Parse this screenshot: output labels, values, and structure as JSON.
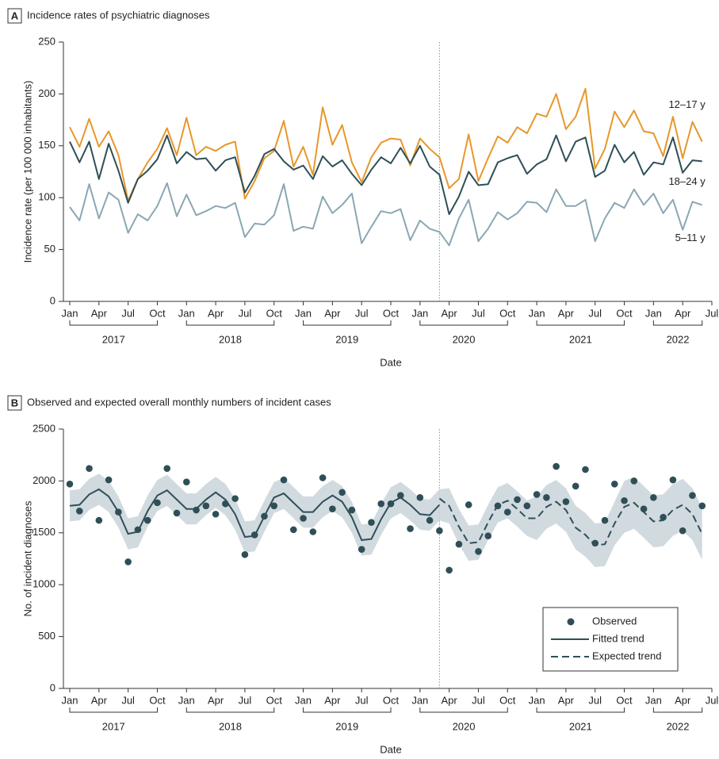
{
  "chart_data": [
    {
      "type": "line",
      "panel": "A",
      "title": "Incidence rates of psychiatric diagnoses",
      "xlabel": "Date",
      "ylabel": "Incidence rate (per 100 000 inhabitants)",
      "x": [
        "2017-01",
        "2017-02",
        "2017-03",
        "2017-04",
        "2017-05",
        "2017-06",
        "2017-07",
        "2017-08",
        "2017-09",
        "2017-10",
        "2017-11",
        "2017-12",
        "2018-01",
        "2018-02",
        "2018-03",
        "2018-04",
        "2018-05",
        "2018-06",
        "2018-07",
        "2018-08",
        "2018-09",
        "2018-10",
        "2018-11",
        "2018-12",
        "2019-01",
        "2019-02",
        "2019-03",
        "2019-04",
        "2019-05",
        "2019-06",
        "2019-07",
        "2019-08",
        "2019-09",
        "2019-10",
        "2019-11",
        "2019-12",
        "2020-01",
        "2020-02",
        "2020-03",
        "2020-04",
        "2020-05",
        "2020-06",
        "2020-07",
        "2020-08",
        "2020-09",
        "2020-10",
        "2020-11",
        "2020-12",
        "2021-01",
        "2021-02",
        "2021-03",
        "2021-04",
        "2021-05",
        "2021-06",
        "2021-07",
        "2021-08",
        "2021-09",
        "2021-10",
        "2021-11",
        "2021-12",
        "2022-01",
        "2022-02",
        "2022-03",
        "2022-04",
        "2022-05",
        "2022-06"
      ],
      "xticks": [
        {
          "value": "2017-01",
          "label": "Jan"
        },
        {
          "value": "2017-04",
          "label": "Apr"
        },
        {
          "value": "2017-07",
          "label": "Jul"
        },
        {
          "value": "2017-10",
          "label": "Oct"
        },
        {
          "value": "2018-01",
          "label": "Jan"
        },
        {
          "value": "2018-04",
          "label": "Apr"
        },
        {
          "value": "2018-07",
          "label": "Jul"
        },
        {
          "value": "2018-10",
          "label": "Oct"
        },
        {
          "value": "2019-01",
          "label": "Jan"
        },
        {
          "value": "2019-04",
          "label": "Apr"
        },
        {
          "value": "2019-07",
          "label": "Jul"
        },
        {
          "value": "2019-10",
          "label": "Oct"
        },
        {
          "value": "2020-01",
          "label": "Jan"
        },
        {
          "value": "2020-04",
          "label": "Apr"
        },
        {
          "value": "2020-07",
          "label": "Jul"
        },
        {
          "value": "2020-10",
          "label": "Oct"
        },
        {
          "value": "2021-01",
          "label": "Jan"
        },
        {
          "value": "2021-04",
          "label": "Apr"
        },
        {
          "value": "2021-07",
          "label": "Jul"
        },
        {
          "value": "2021-10",
          "label": "Oct"
        },
        {
          "value": "2022-01",
          "label": "Jan"
        },
        {
          "value": "2022-04",
          "label": "Apr"
        },
        {
          "value": "2022-07",
          "label": "Jul"
        }
      ],
      "years": [
        "2017",
        "2018",
        "2019",
        "2020",
        "2021",
        "2022"
      ],
      "marker_x": "2020-03",
      "ylim": [
        0,
        250
      ],
      "yticks": [
        0,
        50,
        100,
        150,
        200,
        250
      ],
      "series": [
        {
          "name": "12–17 y",
          "color": "#e8972a",
          "values": [
            168,
            149,
            176,
            149,
            164,
            141,
            97,
            118,
            134,
            147,
            167,
            141,
            177,
            141,
            149,
            145,
            151,
            154,
            99,
            116,
            138,
            145,
            174,
            130,
            149,
            122,
            187,
            151,
            170,
            134,
            115,
            139,
            153,
            157,
            156,
            131,
            157,
            147,
            139,
            109,
            118,
            161,
            116,
            138,
            159,
            153,
            168,
            162,
            181,
            178,
            200,
            166,
            178,
            205,
            128,
            147,
            183,
            168,
            184,
            164,
            162,
            140,
            178,
            138,
            173,
            154
          ]
        },
        {
          "name": "18–24 y",
          "color": "#2f4f57",
          "values": [
            154,
            134,
            154,
            118,
            152,
            126,
            95,
            118,
            126,
            137,
            160,
            133,
            144,
            137,
            138,
            126,
            136,
            139,
            105,
            121,
            142,
            147,
            135,
            127,
            131,
            118,
            140,
            130,
            136,
            123,
            112,
            127,
            139,
            133,
            148,
            133,
            150,
            130,
            122,
            84,
            101,
            125,
            112,
            113,
            134,
            138,
            141,
            123,
            132,
            137,
            160,
            135,
            154,
            158,
            120,
            126,
            151,
            134,
            144,
            122,
            134,
            132,
            158,
            124,
            136,
            135
          ]
        },
        {
          "name": "5–11 y",
          "color": "#8aa7b3",
          "values": [
            91,
            78,
            113,
            80,
            105,
            98,
            66,
            84,
            78,
            92,
            114,
            82,
            103,
            83,
            87,
            92,
            90,
            95,
            62,
            75,
            74,
            83,
            113,
            68,
            72,
            70,
            101,
            85,
            93,
            104,
            56,
            72,
            87,
            85,
            89,
            59,
            78,
            70,
            67,
            54,
            80,
            98,
            58,
            70,
            86,
            79,
            85,
            96,
            95,
            86,
            108,
            92,
            92,
            98,
            58,
            80,
            95,
            90,
            108,
            93,
            104,
            85,
            98,
            69,
            96,
            93
          ]
        }
      ]
    },
    {
      "type": "trend",
      "panel": "B",
      "title": "Observed and expected overall monthly numbers of incident cases",
      "xlabel": "Date",
      "ylabel": "No. of incident diagnoses",
      "x": [
        "2017-01",
        "2017-02",
        "2017-03",
        "2017-04",
        "2017-05",
        "2017-06",
        "2017-07",
        "2017-08",
        "2017-09",
        "2017-10",
        "2017-11",
        "2017-12",
        "2018-01",
        "2018-02",
        "2018-03",
        "2018-04",
        "2018-05",
        "2018-06",
        "2018-07",
        "2018-08",
        "2018-09",
        "2018-10",
        "2018-11",
        "2018-12",
        "2019-01",
        "2019-02",
        "2019-03",
        "2019-04",
        "2019-05",
        "2019-06",
        "2019-07",
        "2019-08",
        "2019-09",
        "2019-10",
        "2019-11",
        "2019-12",
        "2020-01",
        "2020-02",
        "2020-03",
        "2020-04",
        "2020-05",
        "2020-06",
        "2020-07",
        "2020-08",
        "2020-09",
        "2020-10",
        "2020-11",
        "2020-12",
        "2021-01",
        "2021-02",
        "2021-03",
        "2021-04",
        "2021-05",
        "2021-06",
        "2021-07",
        "2021-08",
        "2021-09",
        "2021-10",
        "2021-11",
        "2021-12",
        "2022-01",
        "2022-02",
        "2022-03",
        "2022-04",
        "2022-05",
        "2022-06"
      ],
      "xticks": [
        {
          "value": "2017-01",
          "label": "Jan"
        },
        {
          "value": "2017-04",
          "label": "Apr"
        },
        {
          "value": "2017-07",
          "label": "Jul"
        },
        {
          "value": "2017-10",
          "label": "Oct"
        },
        {
          "value": "2018-01",
          "label": "Jan"
        },
        {
          "value": "2018-04",
          "label": "Apr"
        },
        {
          "value": "2018-07",
          "label": "Jul"
        },
        {
          "value": "2018-10",
          "label": "Oct"
        },
        {
          "value": "2019-01",
          "label": "Jan"
        },
        {
          "value": "2019-04",
          "label": "Apr"
        },
        {
          "value": "2019-07",
          "label": "Jul"
        },
        {
          "value": "2019-10",
          "label": "Oct"
        },
        {
          "value": "2020-01",
          "label": "Jan"
        },
        {
          "value": "2020-04",
          "label": "Apr"
        },
        {
          "value": "2020-07",
          "label": "Jul"
        },
        {
          "value": "2020-10",
          "label": "Oct"
        },
        {
          "value": "2021-01",
          "label": "Jan"
        },
        {
          "value": "2021-04",
          "label": "Apr"
        },
        {
          "value": "2021-07",
          "label": "Jul"
        },
        {
          "value": "2021-10",
          "label": "Oct"
        },
        {
          "value": "2022-01",
          "label": "Jan"
        },
        {
          "value": "2022-04",
          "label": "Apr"
        },
        {
          "value": "2022-07",
          "label": "Jul"
        }
      ],
      "years": [
        "2017",
        "2018",
        "2019",
        "2020",
        "2021",
        "2022"
      ],
      "marker_x": "2020-03",
      "ylim": [
        0,
        2500
      ],
      "yticks": [
        0,
        500,
        1000,
        1500,
        2000,
        2500
      ],
      "legend": "lower right",
      "band": {
        "color": "#c9d3d9",
        "upper": [
          1910,
          1920,
          2020,
          2070,
          2000,
          1850,
          1640,
          1660,
          1860,
          2010,
          2060,
          1970,
          1880,
          1880,
          1970,
          2040,
          1970,
          1830,
          1610,
          1620,
          1810,
          1990,
          2030,
          1940,
          1850,
          1850,
          1950,
          2010,
          1950,
          1800,
          1580,
          1590,
          1780,
          1940,
          1990,
          1920,
          1830,
          1820,
          1920,
          1930,
          1730,
          1570,
          1580,
          1770,
          1940,
          1980,
          1900,
          1810,
          1850,
          1960,
          2010,
          1930,
          1760,
          1690,
          1590,
          1600,
          1800,
          2000,
          2040,
          1950,
          1860,
          1870,
          1970,
          2020,
          1930,
          1740
        ],
        "lower": [
          1610,
          1620,
          1720,
          1770,
          1700,
          1550,
          1340,
          1360,
          1560,
          1710,
          1760,
          1670,
          1580,
          1580,
          1670,
          1740,
          1670,
          1530,
          1310,
          1320,
          1510,
          1690,
          1730,
          1640,
          1550,
          1550,
          1650,
          1710,
          1650,
          1500,
          1280,
          1290,
          1480,
          1640,
          1690,
          1620,
          1530,
          1520,
          1620,
          1590,
          1390,
          1230,
          1240,
          1430,
          1600,
          1640,
          1560,
          1470,
          1430,
          1540,
          1590,
          1510,
          1340,
          1270,
          1170,
          1180,
          1380,
          1500,
          1540,
          1450,
          1360,
          1370,
          1470,
          1520,
          1430,
          1240
        ]
      },
      "series": [
        {
          "name": "Observed",
          "style": "dot",
          "color": "#2f4f57",
          "values": [
            1970,
            1710,
            2120,
            1620,
            2010,
            1700,
            1220,
            1530,
            1620,
            1790,
            2120,
            1690,
            1990,
            1720,
            1760,
            1680,
            1780,
            1830,
            1290,
            1480,
            1660,
            1760,
            2010,
            1530,
            1640,
            1510,
            2030,
            1730,
            1890,
            1720,
            1340,
            1600,
            1780,
            1780,
            1860,
            1540,
            1840,
            1620,
            1520,
            1140,
            1390,
            1770,
            1320,
            1470,
            1760,
            1700,
            1820,
            1760,
            1870,
            1840,
            2140,
            1800,
            1950,
            2110,
            1400,
            1620,
            1970,
            1810,
            2000,
            1730,
            1840,
            1650,
            2010,
            1520,
            1860,
            1760
          ]
        },
        {
          "name": "Fitted trend",
          "style": "solid",
          "color": "#2f4f57",
          "values": [
            1760,
            1770,
            1870,
            1920,
            1850,
            1700,
            1490,
            1510,
            1710,
            1860,
            1910,
            1820,
            1730,
            1730,
            1820,
            1890,
            1820,
            1680,
            1460,
            1470,
            1660,
            1840,
            1880,
            1790,
            1700,
            1700,
            1800,
            1860,
            1800,
            1650,
            1430,
            1440,
            1630,
            1790,
            1840,
            1770,
            1680,
            1670,
            1770,
            null,
            null,
            null,
            null,
            null,
            null,
            null,
            null,
            null,
            null,
            null,
            null,
            null,
            null,
            null,
            null,
            null,
            null,
            null,
            null,
            null,
            null,
            null,
            null,
            null,
            null,
            null
          ]
        },
        {
          "name": "Expected trend",
          "style": "dashed",
          "color": "#2f4f57",
          "values": [
            null,
            null,
            null,
            null,
            null,
            null,
            null,
            null,
            null,
            null,
            null,
            null,
            null,
            null,
            null,
            null,
            null,
            null,
            null,
            null,
            null,
            null,
            null,
            null,
            null,
            null,
            null,
            null,
            null,
            null,
            null,
            null,
            null,
            null,
            null,
            null,
            null,
            null,
            1830,
            1760,
            1560,
            1400,
            1410,
            1600,
            1770,
            1810,
            1730,
            1640,
            1640,
            1750,
            1800,
            1720,
            1550,
            1480,
            1380,
            1390,
            1590,
            1750,
            1790,
            1700,
            1610,
            1620,
            1720,
            1770,
            1680,
            1490
          ]
        }
      ]
    }
  ]
}
